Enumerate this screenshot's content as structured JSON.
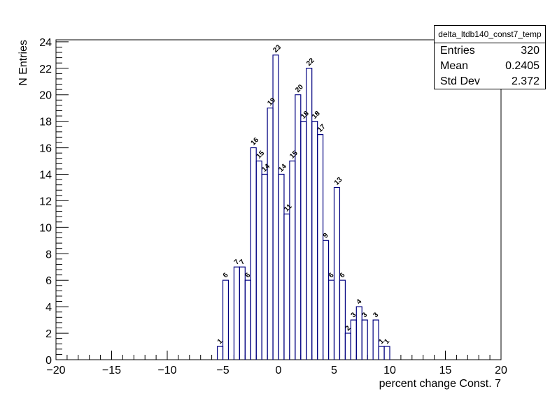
{
  "chart_data": {
    "type": "histogram",
    "title": "",
    "xlabel": "percent change Const. 7",
    "ylabel": "N Entries",
    "xlim": [
      -20,
      20
    ],
    "ylim": [
      0,
      24.15
    ],
    "bin_width": 0.5,
    "x_ticks": [
      "−20",
      "−15",
      "−10",
      "−5",
      "0",
      "5",
      "10",
      "15",
      "20"
    ],
    "x_tick_values": [
      -20,
      -15,
      -10,
      -5,
      0,
      5,
      10,
      15,
      20
    ],
    "y_ticks": [
      "0",
      "2",
      "4",
      "6",
      "8",
      "10",
      "12",
      "14",
      "16",
      "18",
      "20",
      "22",
      "24"
    ],
    "y_tick_values": [
      0,
      2,
      4,
      6,
      8,
      10,
      12,
      14,
      16,
      18,
      20,
      22,
      24
    ],
    "bins": [
      {
        "x0": -5.5,
        "x1": -5.0,
        "value": 1,
        "label": "1"
      },
      {
        "x0": -5.0,
        "x1": -4.5,
        "value": 6,
        "label": "6"
      },
      {
        "x0": -4.0,
        "x1": -3.5,
        "value": 7,
        "label": "7"
      },
      {
        "x0": -3.5,
        "x1": -3.0,
        "value": 7,
        "label": "7"
      },
      {
        "x0": -3.0,
        "x1": -2.5,
        "value": 6,
        "label": "6"
      },
      {
        "x0": -2.5,
        "x1": -2.0,
        "value": 16,
        "label": "16"
      },
      {
        "x0": -2.0,
        "x1": -1.5,
        "value": 15,
        "label": "15"
      },
      {
        "x0": -1.5,
        "x1": -1.0,
        "value": 14,
        "label": "14"
      },
      {
        "x0": -1.0,
        "x1": -0.5,
        "value": 19,
        "label": "19"
      },
      {
        "x0": -0.5,
        "x1": 0.0,
        "value": 23,
        "label": "23"
      },
      {
        "x0": 0.0,
        "x1": 0.5,
        "value": 14,
        "label": "14"
      },
      {
        "x0": 0.5,
        "x1": 1.0,
        "value": 11,
        "label": "11"
      },
      {
        "x0": 1.0,
        "x1": 1.5,
        "value": 15,
        "label": "15"
      },
      {
        "x0": 1.5,
        "x1": 2.0,
        "value": 20,
        "label": "20"
      },
      {
        "x0": 2.0,
        "x1": 2.5,
        "value": 18,
        "label": "18"
      },
      {
        "x0": 2.5,
        "x1": 3.0,
        "value": 22,
        "label": "22"
      },
      {
        "x0": 3.0,
        "x1": 3.5,
        "value": 18,
        "label": "18"
      },
      {
        "x0": 3.5,
        "x1": 4.0,
        "value": 17,
        "label": "17"
      },
      {
        "x0": 4.0,
        "x1": 4.5,
        "value": 9,
        "label": "9"
      },
      {
        "x0": 4.5,
        "x1": 5.0,
        "value": 6,
        "label": "6"
      },
      {
        "x0": 5.0,
        "x1": 5.5,
        "value": 13,
        "label": "13"
      },
      {
        "x0": 5.5,
        "x1": 6.0,
        "value": 6,
        "label": "6"
      },
      {
        "x0": 6.0,
        "x1": 6.5,
        "value": 2,
        "label": "2"
      },
      {
        "x0": 6.5,
        "x1": 7.0,
        "value": 3,
        "label": "3"
      },
      {
        "x0": 7.0,
        "x1": 7.5,
        "value": 4,
        "label": "4"
      },
      {
        "x0": 7.5,
        "x1": 8.0,
        "value": 3,
        "label": "3"
      },
      {
        "x0": 8.5,
        "x1": 9.0,
        "value": 3,
        "label": "3"
      },
      {
        "x0": 9.0,
        "x1": 9.5,
        "value": 1,
        "label": "1"
      },
      {
        "x0": 9.5,
        "x1": 10.0,
        "value": 1,
        "label": "1"
      }
    ],
    "line_color": "#000080",
    "grid": false
  },
  "stats": {
    "name": "delta_ltdb140_const7_temp",
    "entries_label": "Entries",
    "entries_value": "320",
    "mean_label": "Mean",
    "mean_value": "0.2405",
    "std_label": "Std Dev",
    "std_value": "2.372"
  }
}
